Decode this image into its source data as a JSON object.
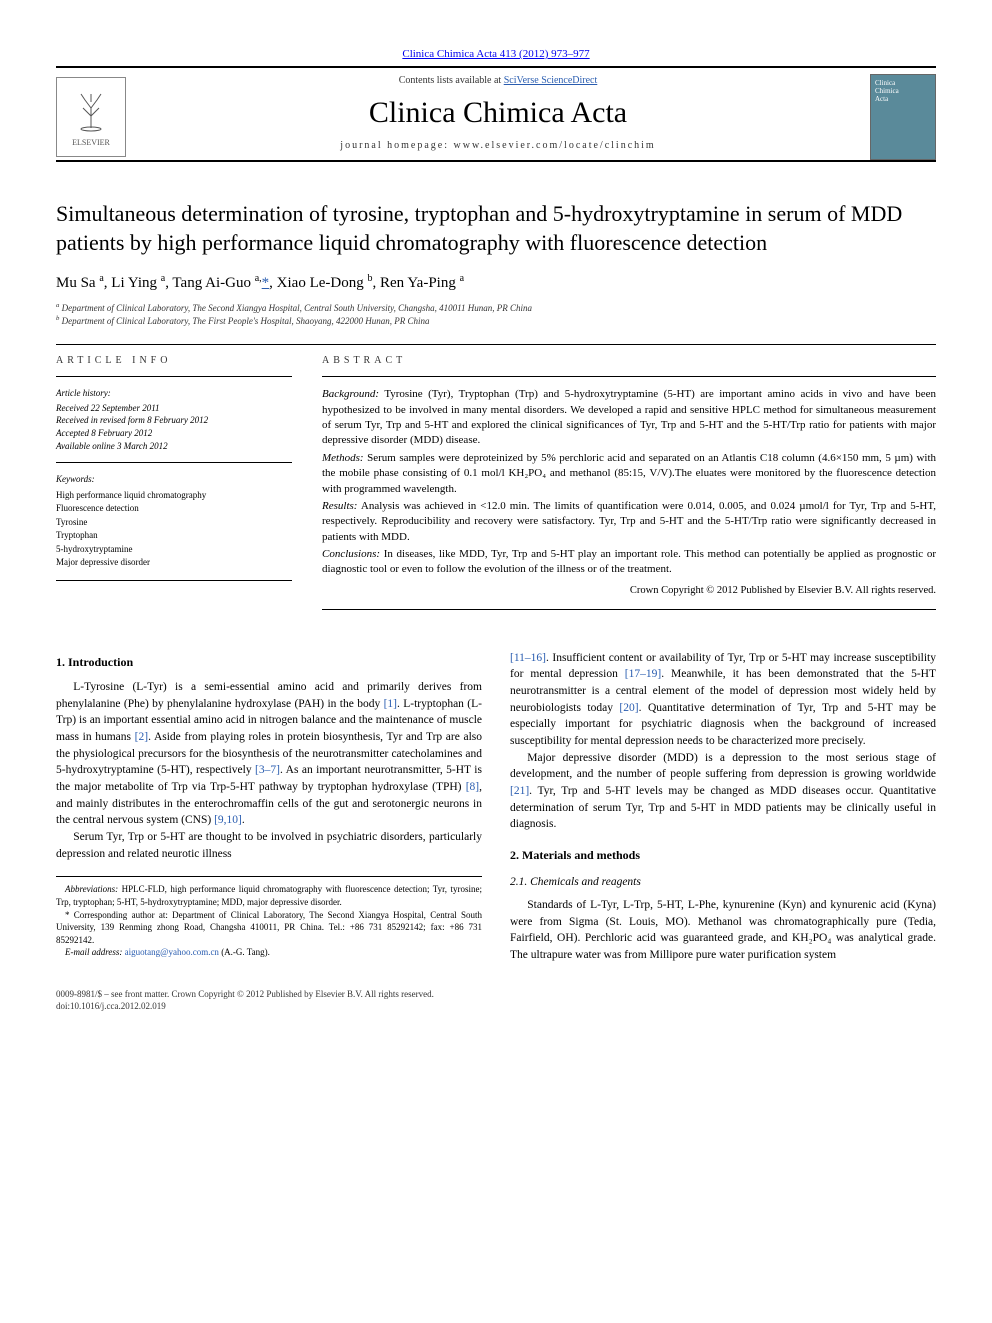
{
  "page": {
    "top_citation": "Clinica Chimica Acta 413 (2012) 973–977",
    "contents_prefix": "Contents lists available at ",
    "contents_link": "SciVerse ScienceDirect",
    "journal_name": "Clinica Chimica Acta",
    "homepage_prefix": "journal homepage: ",
    "homepage": "www.elsevier.com/locate/clinchim",
    "elsevier_label": "ELSEVIER",
    "cover_text": "Clinica\nChimica\nActa"
  },
  "article": {
    "title": "Simultaneous determination of tyrosine, tryptophan and 5-hydroxytryptamine in serum of MDD patients by high performance liquid chromatography with fluorescence detection",
    "authors_html": "Mu Sa <sup>a</sup>, Li Ying <sup>a</sup>, Tang Ai-Guo <sup>a,</sup><a href='#' class='star'>*</a>, Xiao Le-Dong <sup>b</sup>, Ren Ya-Ping <sup>a</sup>",
    "affiliations": [
      "a Department of Clinical Laboratory, The Second Xiangya Hospital, Central South University, Changsha, 410011 Hunan, PR China",
      "b Department of Clinical Laboratory, The First People's Hospital, Shaoyang, 422000 Hunan, PR China"
    ]
  },
  "info": {
    "label": "ARTICLE INFO",
    "history_hdr": "Article history:",
    "history": [
      "Received 22 September 2011",
      "Received in revised form 8 February 2012",
      "Accepted 8 February 2012",
      "Available online 3 March 2012"
    ],
    "keywords_hdr": "Keywords:",
    "keywords": [
      "High performance liquid chromatography",
      "Fluorescence detection",
      "Tyrosine",
      "Tryptophan",
      "5-hydroxytryptamine",
      "Major depressive disorder"
    ]
  },
  "abstract": {
    "label": "ABSTRACT",
    "paragraphs": [
      {
        "lead": "Background:",
        "text": " Tyrosine (Tyr), Tryptophan (Trp) and 5-hydroxytryptamine (5-HT) are important amino acids in vivo and have been hypothesized to be involved in many mental disorders. We developed a rapid and sensitive HPLC method for simultaneous measurement of serum Tyr, Trp and 5-HT and explored the clinical significances of Tyr, Trp and 5-HT and the 5-HT/Trp ratio for patients with major depressive disorder (MDD) disease."
      },
      {
        "lead": "Methods:",
        "text": " Serum samples were deproteinized by 5% perchloric acid and separated on an Atlantis C18 column (4.6×150 mm, 5 µm) with the mobile phase consisting of 0.1 mol/l KH₂PO₄ and methanol (85:15, V/V).The eluates were monitored by the fluorescence detection with programmed wavelength."
      },
      {
        "lead": "Results:",
        "text": " Analysis was achieved in <12.0 min. The limits of quantification were 0.014, 0.005, and 0.024 µmol/l for Tyr, Trp and 5-HT, respectively. Reproducibility and recovery were satisfactory. Tyr, Trp and 5-HT and the 5-HT/Trp ratio were significantly decreased in patients with MDD."
      },
      {
        "lead": "Conclusions:",
        "text": " In diseases, like MDD, Tyr, Trp and 5-HT play an important role. This method can potentially be applied as prognostic or diagnostic tool or even to follow the evolution of the illness or of the treatment."
      }
    ],
    "copyright": "Crown Copyright © 2012 Published by Elsevier B.V. All rights reserved."
  },
  "body": {
    "s1_title": "1. Introduction",
    "s1_p1": "L-Tyrosine (L-Tyr) is a semi-essential amino acid and primarily derives from phenylalanine (Phe) by phenylalanine hydroxylase (PAH) in the body <a href='#'>[1]</a>. L-tryptophan (L-Trp) is an important essential amino acid in nitrogen balance and the maintenance of muscle mass in humans <a href='#'>[2]</a>. Aside from playing roles in protein biosynthesis, Tyr and Trp are also the physiological precursors for the biosynthesis of the neurotransmitter catecholamines and 5-hydroxytryptamine (5-HT), respectively <a href='#'>[3–7]</a>. As an important neurotransmitter, 5-HT is the major metabolite of Trp via Trp-5-HT pathway by tryptophan hydroxylase (TPH) <a href='#'>[8]</a>, and mainly distributes in the enterochromaffin cells of the gut and serotonergic neurons in the central nervous system (CNS) <a href='#'>[9,10]</a>.",
    "s1_p2": "Serum Tyr, Trp or 5-HT are thought to be involved in psychiatric disorders, particularly depression and related neurotic illness",
    "s1_p3": "<a href='#'>[11–16]</a>. Insufficient content or availability of Tyr, Trp or 5-HT may increase susceptibility for mental depression <a href='#'>[17–19]</a>. Meanwhile, it has been demonstrated that the 5-HT neurotransmitter is a central element of the model of depression most widely held by neurobiologists today <a href='#'>[20]</a>. Quantitative determination of Tyr, Trp and 5-HT may be especially important for psychiatric diagnosis when the background of increased susceptibility for mental depression needs to be characterized more precisely.",
    "s1_p4": "Major depressive disorder (MDD) is a depression to the most serious stage of development, and the number of people suffering from depression is growing worldwide <a href='#'>[21]</a>. Tyr, Trp and 5-HT levels may be changed as MDD diseases occur. Quantitative determination of serum Tyr, Trp and 5-HT in MDD patients may be clinically useful in diagnosis.",
    "s2_title": "2. Materials and methods",
    "s2_1_title": "2.1. Chemicals and reagents",
    "s2_1_p1": "Standards of L-Tyr, L-Trp, 5-HT, L-Phe, kynurenine (Kyn) and kynurenic acid (Kyna) were from Sigma (St. Louis, MO). Methanol was chromatographically pure (Tedia, Fairfield, OH). Perchloric acid was guaranteed grade, and KH₂PO₄ was analytical grade. The ultrapure water was from Millipore pure water purification system"
  },
  "footnotes": {
    "abbrev_lead": "Abbreviations:",
    "abbrev": " HPLC-FLD, high performance liquid chromatography with fluorescence detection; Tyr, tyrosine; Trp, tryptophan; 5-HT, 5-hydroxytryptamine; MDD, major depressive disorder.",
    "corr_lead": "*",
    "corr": " Corresponding author at: Department of Clinical Laboratory, The Second Xiangya Hospital, Central South University, 139 Renming zhong Road, Changsha 410011, PR China. Tel.: +86 731 85292142; fax: +86 731 85292142.",
    "email_lead": "E-mail address:",
    "email": " aiguotang@yahoo.com.cn",
    "email_suffix": " (A.-G. Tang)."
  },
  "footer": {
    "left": "0009-8981/$ – see front matter. Crown Copyright © 2012 Published by Elsevier B.V. All rights reserved.",
    "doi": "doi:10.1016/j.cca.2012.02.019"
  },
  "colors": {
    "link": "#2a5db0",
    "text": "#000000",
    "cover_bg": "#5a8a9a"
  }
}
